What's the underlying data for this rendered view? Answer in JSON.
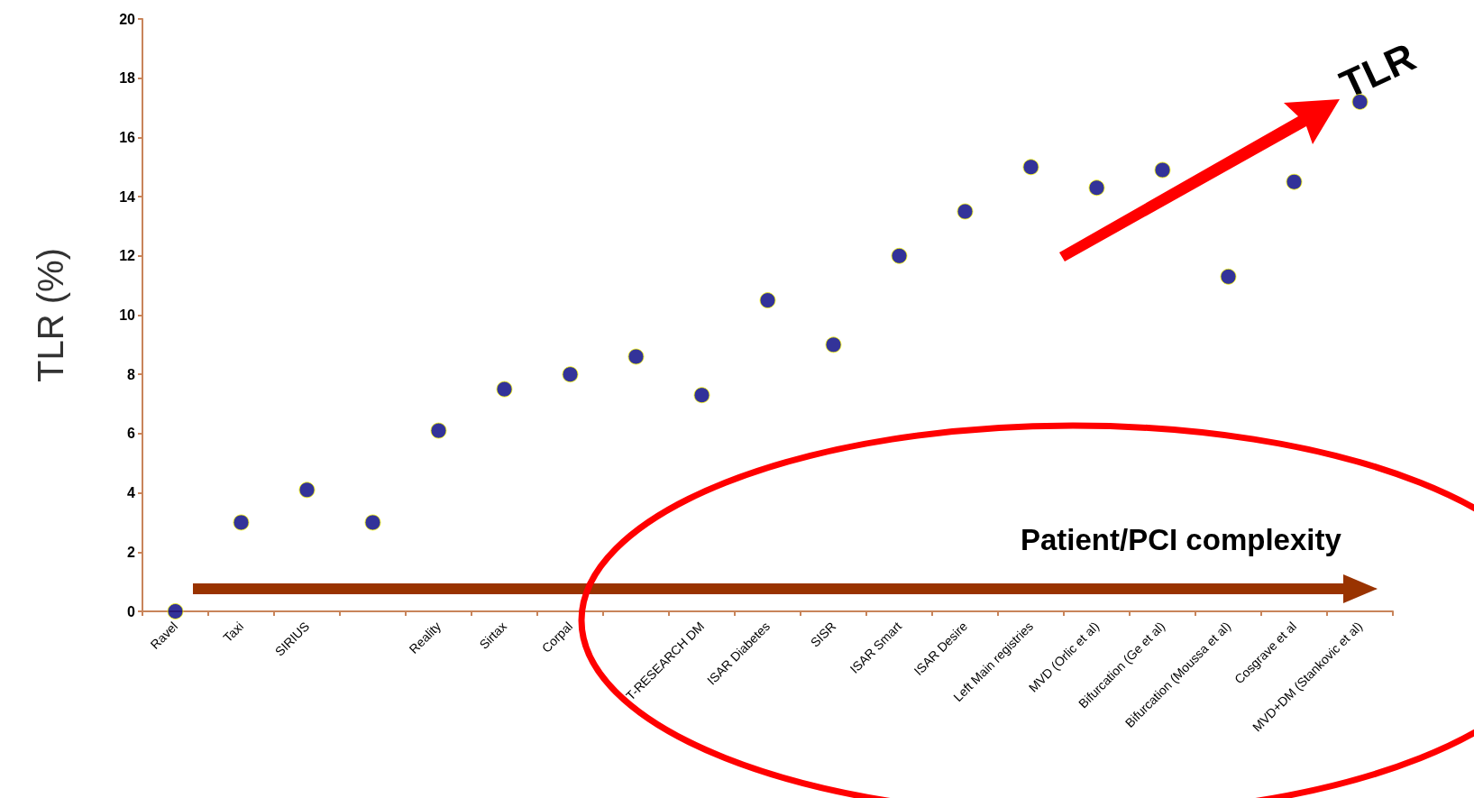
{
  "chart_data": {
    "type": "scatter",
    "ylabel": "TLR (%)",
    "categories": [
      "Ravel",
      "Taxi",
      "SIRIUS",
      null,
      "Reality",
      "Sirtax",
      "Corpal",
      null,
      "T-RESEARCH DM",
      "ISAR Diabetes",
      "SISR",
      "ISAR Smart",
      "ISAR Desire",
      "Left Main registries",
      "MVD (Orlic et al)",
      "Bifurcation (Ge et al)",
      "Bifurcation (Moussa et al)",
      "Cosgrave et al",
      "MVD+DM (Stankovic et al)"
    ],
    "values": [
      0,
      3,
      4.1,
      3,
      6.1,
      7.5,
      8,
      8.6,
      7.3,
      10.5,
      9,
      12,
      13.5,
      15,
      14.3,
      14.9,
      11.3,
      14.5,
      17.2
    ],
    "color": "#000080",
    "marker": "circle",
    "ylim": [
      0,
      20
    ],
    "yticks": [
      0,
      2,
      4,
      6,
      8,
      10,
      12,
      14,
      16,
      18,
      20
    ],
    "grid": false,
    "annotations": [
      "TLR",
      "Patient/PCI complexity"
    ]
  }
}
